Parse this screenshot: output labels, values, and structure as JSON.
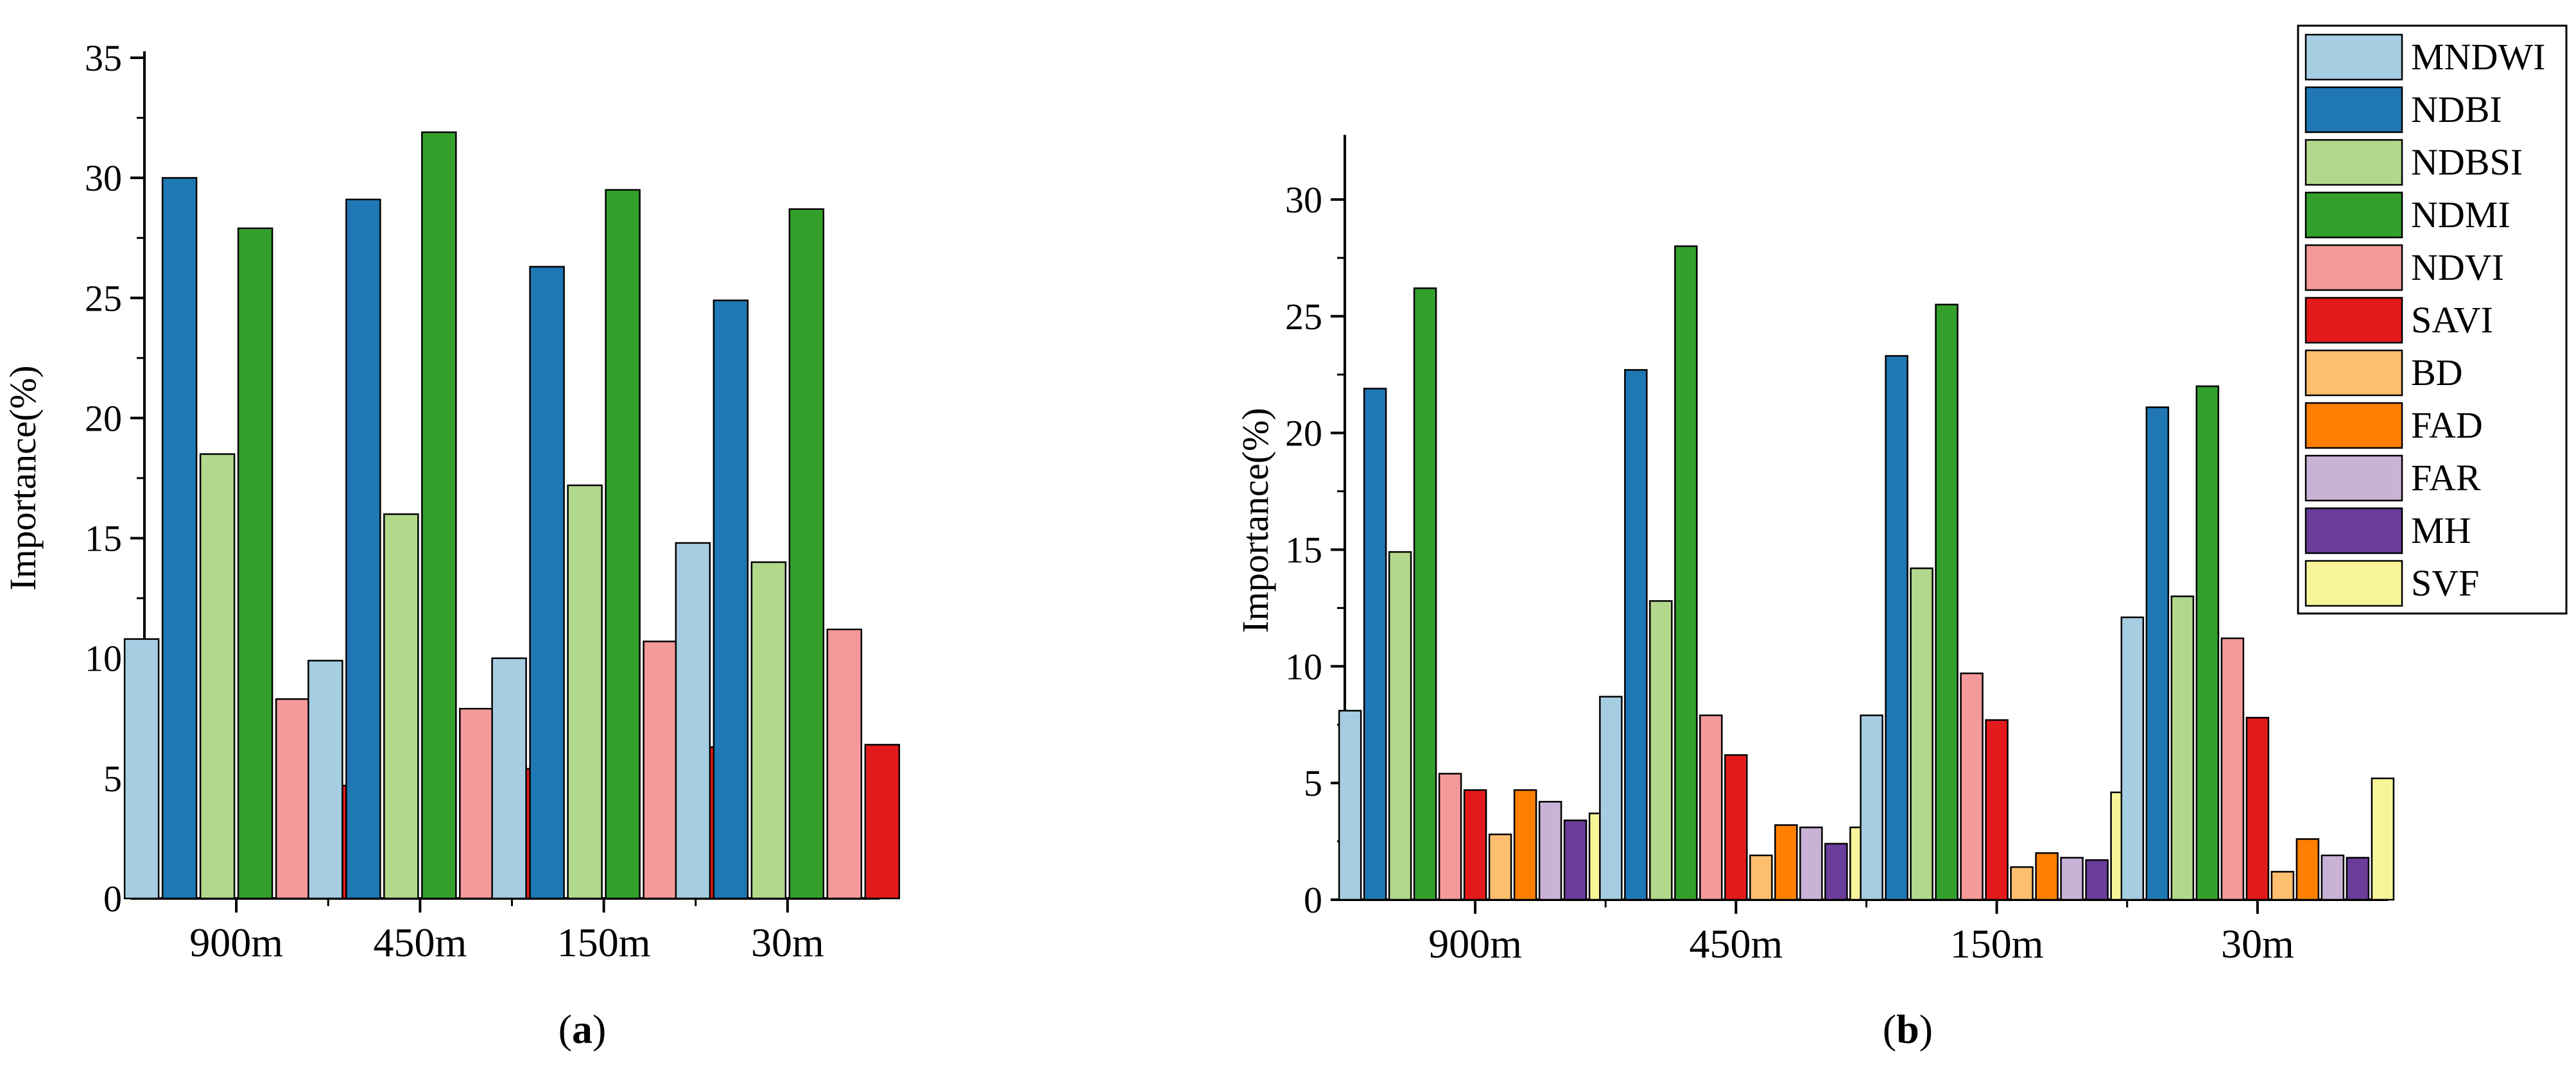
{
  "series_colors": {
    "MNDWI": "#a6cde2",
    "NDBI": "#1f78b4",
    "NDBSI": "#b2d88c",
    "NDMI": "#33a02c",
    "NDVI": "#f59a9a",
    "SAVI": "#e31a1c",
    "BD": "#fdbf6f",
    "FAD": "#ff7f00",
    "FAR": "#cab2d6",
    "MH": "#6a3d9a",
    "SVF": "#f8f49a"
  },
  "legend": [
    "MNDWI",
    "NDBI",
    "NDBSI",
    "NDMI",
    "NDVI",
    "SAVI",
    "BD",
    "FAD",
    "FAR",
    "MH",
    "SVF"
  ],
  "chart_data": [
    {
      "type": "bar",
      "panel": "(a)",
      "panel_letter": "a",
      "categories": [
        "900m",
        "450m",
        "150m",
        "30m"
      ],
      "xlabel": "",
      "ylabel": "Importance(%)",
      "ylim": [
        0,
        35
      ],
      "yticks": [
        "0",
        "5",
        "10",
        "15",
        "20",
        "25",
        "30",
        "35"
      ],
      "series": [
        {
          "name": "MNDWI",
          "values": [
            10.8,
            9.9,
            10.0,
            14.8
          ]
        },
        {
          "name": "NDBI",
          "values": [
            30.0,
            29.1,
            26.3,
            24.9
          ]
        },
        {
          "name": "NDBSI",
          "values": [
            18.5,
            16.0,
            17.2,
            14.0
          ]
        },
        {
          "name": "NDMI",
          "values": [
            27.9,
            31.9,
            29.5,
            28.7
          ]
        },
        {
          "name": "NDVI",
          "values": [
            8.3,
            7.9,
            10.7,
            11.2
          ]
        },
        {
          "name": "SAVI",
          "values": [
            4.7,
            5.4,
            6.3,
            6.4
          ]
        }
      ]
    },
    {
      "type": "bar",
      "panel": "(b)",
      "panel_letter": "b",
      "categories": [
        "900m",
        "450m",
        "150m",
        "30m"
      ],
      "xlabel": "",
      "ylabel": "Importance(%)",
      "ylim": [
        0,
        32.5
      ],
      "yticks": [
        "0",
        "5",
        "10",
        "15",
        "20",
        "25",
        "30"
      ],
      "series": [
        {
          "name": "MNDWI",
          "values": [
            8.1,
            8.7,
            7.9,
            12.1
          ]
        },
        {
          "name": "NDBI",
          "values": [
            21.9,
            22.7,
            23.3,
            21.1
          ]
        },
        {
          "name": "NDBSI",
          "values": [
            14.9,
            12.8,
            14.2,
            13.0
          ]
        },
        {
          "name": "NDMI",
          "values": [
            26.2,
            28.0,
            25.5,
            22.0
          ]
        },
        {
          "name": "NDVI",
          "values": [
            5.4,
            7.9,
            9.7,
            11.2
          ]
        },
        {
          "name": "SAVI",
          "values": [
            4.7,
            6.2,
            7.7,
            7.8
          ]
        },
        {
          "name": "BD",
          "values": [
            2.8,
            1.9,
            1.4,
            1.2
          ]
        },
        {
          "name": "FAD",
          "values": [
            4.7,
            3.2,
            2.0,
            2.6
          ]
        },
        {
          "name": "FAR",
          "values": [
            4.2,
            3.1,
            1.8,
            1.9
          ]
        },
        {
          "name": "MH",
          "values": [
            3.4,
            2.4,
            1.7,
            1.8
          ]
        },
        {
          "name": "SVF",
          "values": [
            3.7,
            3.1,
            4.6,
            5.2
          ]
        }
      ]
    }
  ]
}
